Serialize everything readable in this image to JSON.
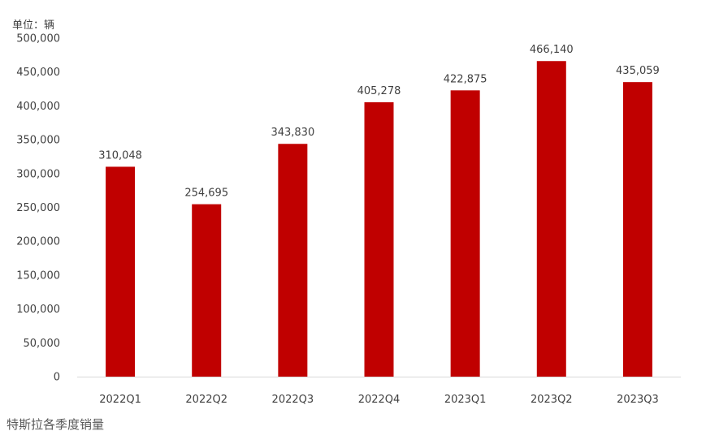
{
  "chart_data": {
    "type": "bar",
    "unit_label": "单位：辆",
    "categories": [
      "2022Q1",
      "2022Q2",
      "2022Q3",
      "2022Q4",
      "2023Q1",
      "2023Q2",
      "2023Q3"
    ],
    "values": [
      310048,
      254695,
      343830,
      405278,
      422875,
      466140,
      435059
    ],
    "value_labels": [
      "310,048",
      "254,695",
      "343,830",
      "405,278",
      "422,875",
      "466,140",
      "435,059"
    ],
    "ylim": [
      0,
      500000
    ],
    "yticks": [
      0,
      50000,
      100000,
      150000,
      200000,
      250000,
      300000,
      350000,
      400000,
      450000,
      500000
    ],
    "ytick_labels": [
      "0",
      "50,000",
      "100,000",
      "150,000",
      "200,000",
      "250,000",
      "300,000",
      "350,000",
      "400,000",
      "450,000",
      "500,000"
    ],
    "grid": false,
    "bar_color": "#c00000",
    "caption": "特斯拉各季度销量"
  }
}
